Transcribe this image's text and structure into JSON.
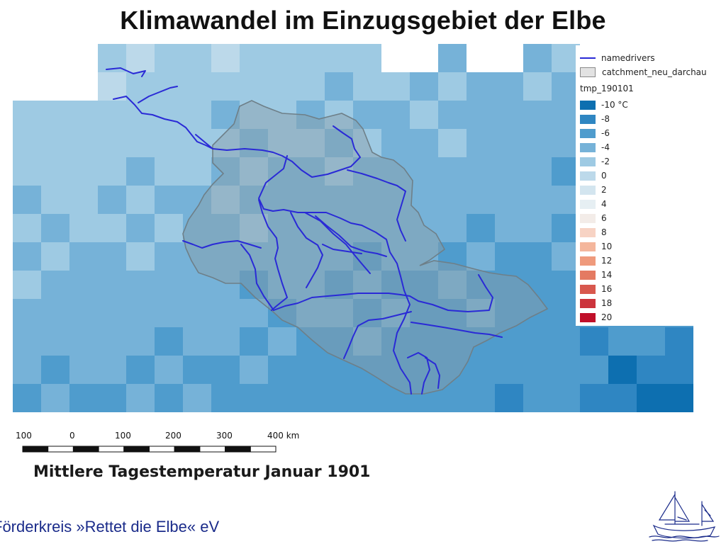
{
  "title": "Klimawandel im Einzugsgebiet der Elbe",
  "legend": {
    "rivers_label": "namedrivers",
    "catchment_label": "catchment_neu_darchau",
    "raster_label": "tmp_190101",
    "entries": [
      {
        "label": "-10 °C",
        "color": "#0d6fb0"
      },
      {
        "label": "-8",
        "color": "#2f86c2"
      },
      {
        "label": "-6",
        "color": "#4f9ccd"
      },
      {
        "label": "-4",
        "color": "#76b2d8"
      },
      {
        "label": "-2",
        "color": "#9ecae3"
      },
      {
        "label": "0",
        "color": "#bcd9ea"
      },
      {
        "label": "2",
        "color": "#d3e5ef"
      },
      {
        "label": "4",
        "color": "#e6eff3"
      },
      {
        "label": "6",
        "color": "#f3ece8"
      },
      {
        "label": "8",
        "color": "#f7d3c4"
      },
      {
        "label": "10",
        "color": "#f4b69c"
      },
      {
        "label": "12",
        "color": "#ef9a7c"
      },
      {
        "label": "14",
        "color": "#e47a62"
      },
      {
        "label": "16",
        "color": "#d8584e"
      },
      {
        "label": "18",
        "color": "#cc343c"
      },
      {
        "label": "20",
        "color": "#c0102a"
      }
    ]
  },
  "scale": {
    "labels": [
      "100",
      "0",
      "100",
      "200",
      "300",
      "400 km"
    ]
  },
  "caption": "Mittlere Tagestemperatur Januar 1901",
  "footer": "Förderkreis »Rettet die Elbe« eV",
  "colors": {
    "river": "#2a2ad6",
    "catchment_fill": "#8a9ea8",
    "catchment_stroke": "#6e7f88",
    "footer_text": "#1a2b8a"
  },
  "icons": {
    "logo": "sailing-ship-icon"
  }
}
